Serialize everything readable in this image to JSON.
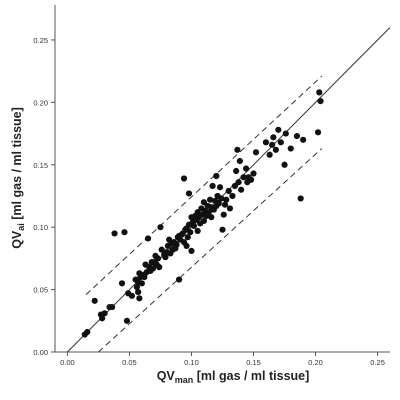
{
  "chart_data": {
    "type": "scatter",
    "title": "",
    "xlabel": {
      "main": "QV",
      "sub": "man",
      "rest": " [ml gas / ml tissue]"
    },
    "ylabel": {
      "main": "QV",
      "sub": "ai",
      "rest": " [ml gas / ml tissue]"
    },
    "xlim": [
      -0.01,
      0.26
    ],
    "ylim": [
      0.0,
      0.278
    ],
    "x_ticks": [
      0.0,
      0.05,
      0.1,
      0.15,
      0.2,
      0.25
    ],
    "x_tick_labels": [
      "0.00",
      "0.05",
      "0.10",
      "0.15",
      "0.20",
      "0.25"
    ],
    "y_ticks": [
      0.0,
      0.05,
      0.1,
      0.15,
      0.2,
      0.25
    ],
    "y_tick_labels": [
      "0.00",
      "0.05",
      "0.10",
      "0.15",
      "0.20",
      "0.25"
    ],
    "grid": false,
    "lines": [
      {
        "kind": "identity",
        "style": "solid",
        "x": [
          0.0,
          0.26
        ],
        "y": [
          0.0,
          0.26
        ]
      },
      {
        "kind": "limit-upper",
        "style": "dashed",
        "x": [
          0.015,
          0.205
        ],
        "y": [
          0.046,
          0.221
        ]
      },
      {
        "kind": "limit-lower",
        "style": "dashed",
        "x": [
          0.025,
          0.205
        ],
        "y": [
          0.0,
          0.163
        ]
      }
    ],
    "points": [
      [
        0.014,
        0.014
      ],
      [
        0.016,
        0.016
      ],
      [
        0.022,
        0.041
      ],
      [
        0.027,
        0.03
      ],
      [
        0.028,
        0.027
      ],
      [
        0.03,
        0.031
      ],
      [
        0.034,
        0.036
      ],
      [
        0.036,
        0.036
      ],
      [
        0.038,
        0.095
      ],
      [
        0.044,
        0.055
      ],
      [
        0.046,
        0.096
      ],
      [
        0.048,
        0.025
      ],
      [
        0.049,
        0.047
      ],
      [
        0.052,
        0.045
      ],
      [
        0.055,
        0.058
      ],
      [
        0.056,
        0.052
      ],
      [
        0.057,
        0.048
      ],
      [
        0.057,
        0.056
      ],
      [
        0.058,
        0.063
      ],
      [
        0.058,
        0.043
      ],
      [
        0.059,
        0.06
      ],
      [
        0.06,
        0.055
      ],
      [
        0.062,
        0.06
      ],
      [
        0.062,
        0.062
      ],
      [
        0.063,
        0.07
      ],
      [
        0.064,
        0.064
      ],
      [
        0.065,
        0.091
      ],
      [
        0.066,
        0.068
      ],
      [
        0.067,
        0.065
      ],
      [
        0.068,
        0.072
      ],
      [
        0.069,
        0.067
      ],
      [
        0.07,
        0.072
      ],
      [
        0.071,
        0.077
      ],
      [
        0.072,
        0.07
      ],
      [
        0.073,
        0.075
      ],
      [
        0.074,
        0.068
      ],
      [
        0.075,
        0.1
      ],
      [
        0.076,
        0.082
      ],
      [
        0.078,
        0.078
      ],
      [
        0.079,
        0.076
      ],
      [
        0.08,
        0.08
      ],
      [
        0.081,
        0.085
      ],
      [
        0.082,
        0.09
      ],
      [
        0.083,
        0.079
      ],
      [
        0.084,
        0.087
      ],
      [
        0.085,
        0.082
      ],
      [
        0.086,
        0.088
      ],
      [
        0.087,
        0.083
      ],
      [
        0.088,
        0.086
      ],
      [
        0.089,
        0.092
      ],
      [
        0.09,
        0.058
      ],
      [
        0.09,
        0.093
      ],
      [
        0.091,
        0.09
      ],
      [
        0.092,
        0.094
      ],
      [
        0.093,
        0.095
      ],
      [
        0.094,
        0.139
      ],
      [
        0.094,
        0.088
      ],
      [
        0.095,
        0.098
      ],
      [
        0.096,
        0.085
      ],
      [
        0.096,
        0.099
      ],
      [
        0.097,
        0.092
      ],
      [
        0.098,
        0.102
      ],
      [
        0.098,
        0.127
      ],
      [
        0.099,
        0.096
      ],
      [
        0.1,
        0.108
      ],
      [
        0.1,
        0.081
      ],
      [
        0.101,
        0.104
      ],
      [
        0.102,
        0.101
      ],
      [
        0.103,
        0.109
      ],
      [
        0.104,
        0.106
      ],
      [
        0.105,
        0.112
      ],
      [
        0.105,
        0.097
      ],
      [
        0.106,
        0.108
      ],
      [
        0.107,
        0.103
      ],
      [
        0.108,
        0.115
      ],
      [
        0.109,
        0.11
      ],
      [
        0.11,
        0.12
      ],
      [
        0.11,
        0.105
      ],
      [
        0.111,
        0.113
      ],
      [
        0.112,
        0.109
      ],
      [
        0.113,
        0.117
      ],
      [
        0.114,
        0.112
      ],
      [
        0.115,
        0.122
      ],
      [
        0.116,
        0.108
      ],
      [
        0.116,
        0.116
      ],
      [
        0.117,
        0.133
      ],
      [
        0.118,
        0.114
      ],
      [
        0.119,
        0.121
      ],
      [
        0.12,
        0.117
      ],
      [
        0.12,
        0.141
      ],
      [
        0.121,
        0.125
      ],
      [
        0.122,
        0.119
      ],
      [
        0.123,
        0.132
      ],
      [
        0.124,
        0.123
      ],
      [
        0.125,
        0.098
      ],
      [
        0.126,
        0.11
      ],
      [
        0.127,
        0.118
      ],
      [
        0.128,
        0.122
      ],
      [
        0.13,
        0.129
      ],
      [
        0.131,
        0.115
      ],
      [
        0.133,
        0.125
      ],
      [
        0.135,
        0.133
      ],
      [
        0.136,
        0.145
      ],
      [
        0.137,
        0.162
      ],
      [
        0.138,
        0.136
      ],
      [
        0.139,
        0.153
      ],
      [
        0.14,
        0.13
      ],
      [
        0.142,
        0.14
      ],
      [
        0.144,
        0.147
      ],
      [
        0.145,
        0.136
      ],
      [
        0.146,
        0.14
      ],
      [
        0.148,
        0.138
      ],
      [
        0.15,
        0.143
      ],
      [
        0.152,
        0.16
      ],
      [
        0.16,
        0.168
      ],
      [
        0.163,
        0.158
      ],
      [
        0.165,
        0.166
      ],
      [
        0.166,
        0.172
      ],
      [
        0.168,
        0.162
      ],
      [
        0.17,
        0.178
      ],
      [
        0.172,
        0.168
      ],
      [
        0.175,
        0.15
      ],
      [
        0.176,
        0.175
      ],
      [
        0.18,
        0.163
      ],
      [
        0.185,
        0.173
      ],
      [
        0.188,
        0.123
      ],
      [
        0.19,
        0.17
      ],
      [
        0.202,
        0.176
      ],
      [
        0.203,
        0.208
      ],
      [
        0.204,
        0.201
      ]
    ]
  }
}
